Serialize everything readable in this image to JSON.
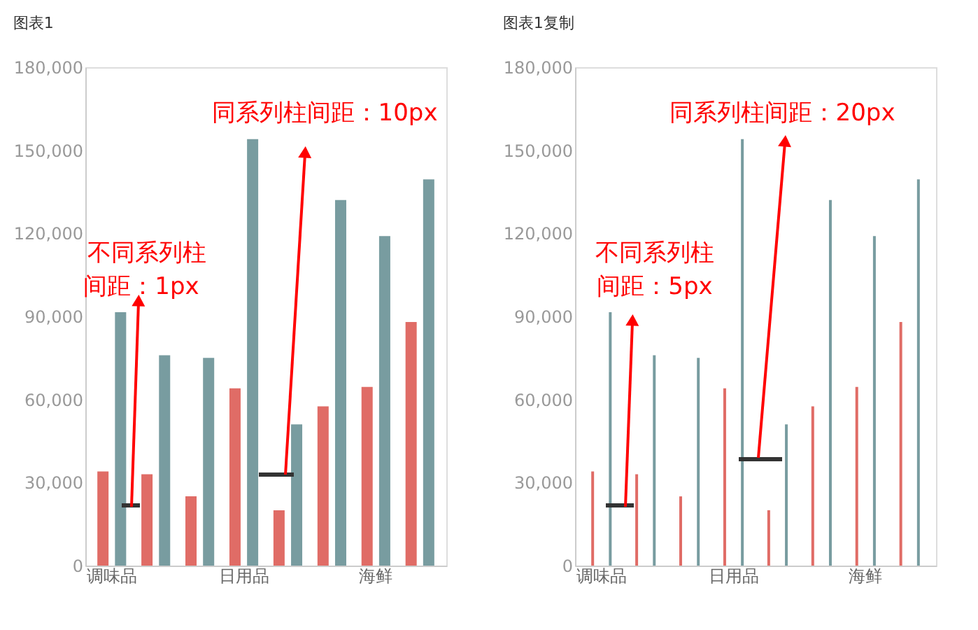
{
  "chart_data": [
    {
      "type": "bar",
      "title": "图表1",
      "categories": [
        "调味品",
        null,
        null,
        "日用品",
        null,
        null,
        "海鲜",
        null
      ],
      "series": [
        {
          "color": "#e06c66",
          "values": [
            34000,
            33000,
            25000,
            64000,
            20000,
            57500,
            64500,
            88000
          ]
        },
        {
          "color": "#789ca0",
          "values": [
            91500,
            76000,
            75000,
            154000,
            51000,
            132000,
            119000,
            139500
          ]
        }
      ],
      "ylim": [
        0,
        180000
      ],
      "yticks": [
        {
          "value": 0,
          "label": "0"
        },
        {
          "value": 30000,
          "label": "30,000"
        },
        {
          "value": 60000,
          "label": "60,000"
        },
        {
          "value": 90000,
          "label": "90,000"
        },
        {
          "value": 120000,
          "label": "120,000"
        },
        {
          "value": 150000,
          "label": "150,000"
        },
        {
          "value": 180000,
          "label": "180,000"
        }
      ],
      "grid": false,
      "legend": false,
      "annotations": [
        "同系列柱间距：10px",
        "不同系列柱",
        "间距：1px"
      ]
    },
    {
      "type": "bar",
      "title": "图表1复制",
      "categories": [
        "调味品",
        null,
        null,
        "日用品",
        null,
        null,
        "海鲜",
        null
      ],
      "series": [
        {
          "color": "#e06c66",
          "values": [
            34000,
            33000,
            25000,
            64000,
            20000,
            57500,
            64500,
            88000
          ]
        },
        {
          "color": "#789ca0",
          "values": [
            91500,
            76000,
            75000,
            154000,
            51000,
            132000,
            119000,
            139500
          ]
        }
      ],
      "ylim": [
        0,
        180000
      ],
      "yticks": [
        {
          "value": 0,
          "label": "0"
        },
        {
          "value": 30000,
          "label": "30,000"
        },
        {
          "value": 60000,
          "label": "60,000"
        },
        {
          "value": 90000,
          "label": "90,000"
        },
        {
          "value": 120000,
          "label": "120,000"
        },
        {
          "value": 150000,
          "label": "150,000"
        },
        {
          "value": 180000,
          "label": "180,000"
        }
      ],
      "grid": false,
      "legend": false,
      "annotations": [
        "同系列柱间距：20px",
        "不同系列柱",
        "间距：5px"
      ]
    }
  ]
}
